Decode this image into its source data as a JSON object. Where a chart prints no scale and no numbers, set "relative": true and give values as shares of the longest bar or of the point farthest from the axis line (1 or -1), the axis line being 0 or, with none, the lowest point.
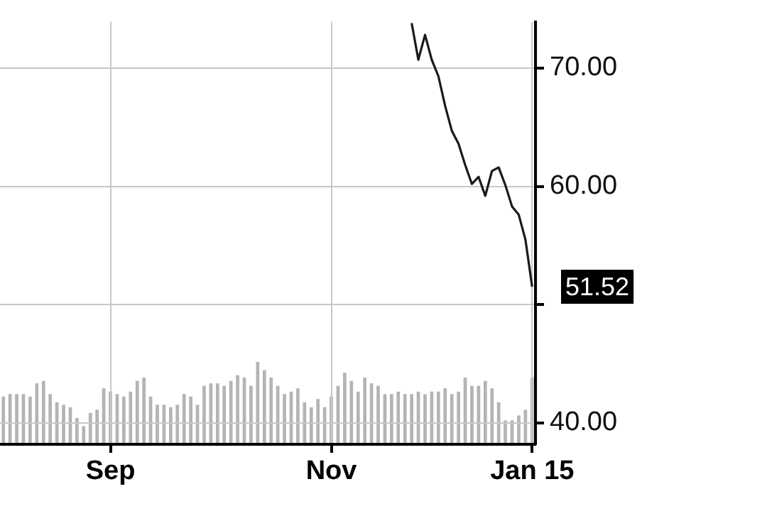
{
  "chart_data": [
    {
      "type": "line",
      "categories": [
        null,
        null,
        null,
        null,
        null,
        null,
        null,
        null,
        null,
        null,
        null,
        null,
        null,
        null,
        null,
        null,
        "Sep",
        null,
        null,
        null,
        null,
        null,
        null,
        null,
        null,
        null,
        null,
        null,
        null,
        null,
        null,
        null,
        null,
        null,
        null,
        null,
        null,
        null,
        null,
        null,
        null,
        null,
        null,
        null,
        null,
        null,
        null,
        null,
        null,
        "Nov",
        null,
        null,
        null,
        null,
        null,
        null,
        null,
        null,
        null,
        null,
        null,
        null,
        null,
        null,
        null,
        null,
        null,
        null,
        null,
        null,
        null,
        null,
        null,
        null,
        null,
        null,
        null,
        null,
        null,
        "Jan 15"
      ],
      "values": [
        null,
        null,
        null,
        null,
        null,
        null,
        null,
        null,
        null,
        null,
        null,
        null,
        null,
        null,
        null,
        null,
        null,
        null,
        null,
        null,
        null,
        null,
        null,
        null,
        null,
        null,
        null,
        null,
        null,
        null,
        null,
        null,
        null,
        null,
        null,
        null,
        null,
        null,
        null,
        null,
        null,
        null,
        null,
        null,
        null,
        null,
        null,
        null,
        null,
        null,
        null,
        null,
        null,
        null,
        null,
        null,
        null,
        null,
        null,
        null,
        null,
        73.8,
        70.7,
        72.8,
        70.7,
        69.3,
        66.8,
        64.7,
        63.6,
        61.8,
        60.2,
        60.8,
        59.2,
        61.3,
        61.6,
        60.1,
        58.3,
        57.6,
        55.5,
        51.52
      ],
      "color": "#1a1a1a",
      "marker": "none",
      "ylim": [
        38.2,
        73.9
      ],
      "yticks": [
        {
          "value": 40,
          "label": "40.00"
        },
        {
          "value": 50,
          "label": null
        },
        {
          "value": 60,
          "label": "60.00"
        },
        {
          "value": 70,
          "label": "70.00"
        }
      ],
      "grid": true,
      "legend": false,
      "annotations": [
        "51.52"
      ]
    },
    {
      "type": "bar",
      "relative": true,
      "tick_labels": false,
      "legend": false,
      "color": "#b4b4b4",
      "categories": [
        null,
        null,
        null,
        null,
        null,
        null,
        null,
        null,
        null,
        null,
        null,
        null,
        null,
        null,
        null,
        null,
        null,
        null,
        null,
        null,
        null,
        null,
        null,
        null,
        null,
        null,
        null,
        null,
        null,
        null,
        null,
        null,
        null,
        null,
        null,
        null,
        null,
        null,
        null,
        null,
        null,
        null,
        null,
        null,
        null,
        null,
        null,
        null,
        null,
        null,
        null,
        null,
        null,
        null,
        null,
        null,
        null,
        null,
        null,
        null,
        null,
        null,
        null,
        null,
        null,
        null,
        null,
        null,
        null,
        null,
        null,
        null,
        null,
        null,
        null,
        null,
        null,
        null,
        null,
        null
      ],
      "values": [
        0.58,
        0.61,
        0.61,
        0.61,
        0.58,
        0.74,
        0.77,
        0.61,
        0.51,
        0.48,
        0.45,
        0.32,
        0.22,
        0.38,
        0.42,
        0.68,
        0.64,
        0.61,
        0.58,
        0.64,
        0.77,
        0.81,
        0.58,
        0.48,
        0.48,
        0.45,
        0.48,
        0.61,
        0.58,
        0.48,
        0.71,
        0.74,
        0.74,
        0.71,
        0.77,
        0.84,
        0.81,
        0.71,
        1,
        0.9,
        0.81,
        0.71,
        0.61,
        0.64,
        0.68,
        0.51,
        0.45,
        0.55,
        0.45,
        0.58,
        0.71,
        0.87,
        0.77,
        0.64,
        0.81,
        0.74,
        0.71,
        0.61,
        0.61,
        0.64,
        0.61,
        0.61,
        0.64,
        0.61,
        0.64,
        0.64,
        0.68,
        0.61,
        0.64,
        0.81,
        0.71,
        0.71,
        0.77,
        0.68,
        0.51,
        0.29,
        0.29,
        0.35,
        0.42,
        0.81
      ]
    }
  ]
}
